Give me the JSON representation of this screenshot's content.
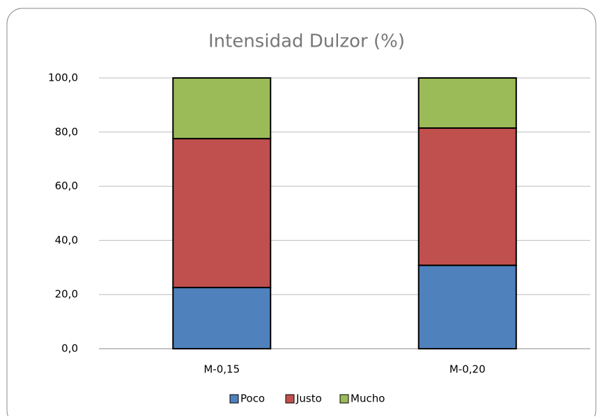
{
  "chart_data": {
    "type": "stacked_bar",
    "title": "Intensidad Dulzor (%)",
    "categories": [
      "M-0,15",
      "M-0,20"
    ],
    "series": [
      {
        "name": "Poco",
        "color": "#4f81bd",
        "values": [
          22.6,
          30.8
        ]
      },
      {
        "name": "Justo",
        "color": "#c0504d",
        "values": [
          55.0,
          50.7
        ]
      },
      {
        "name": "Mucho",
        "color": "#9bbb59",
        "values": [
          22.4,
          18.5
        ]
      }
    ],
    "ylim": [
      0,
      100
    ],
    "yticks": [
      {
        "value": 0,
        "label": "0,0"
      },
      {
        "value": 20,
        "label": "20,0"
      },
      {
        "value": 40,
        "label": "40,0"
      },
      {
        "value": 60,
        "label": "60,0"
      },
      {
        "value": 80,
        "label": "80,0"
      },
      {
        "value": 100,
        "label": "100,0"
      }
    ],
    "grid": true,
    "legend": "bottom"
  }
}
